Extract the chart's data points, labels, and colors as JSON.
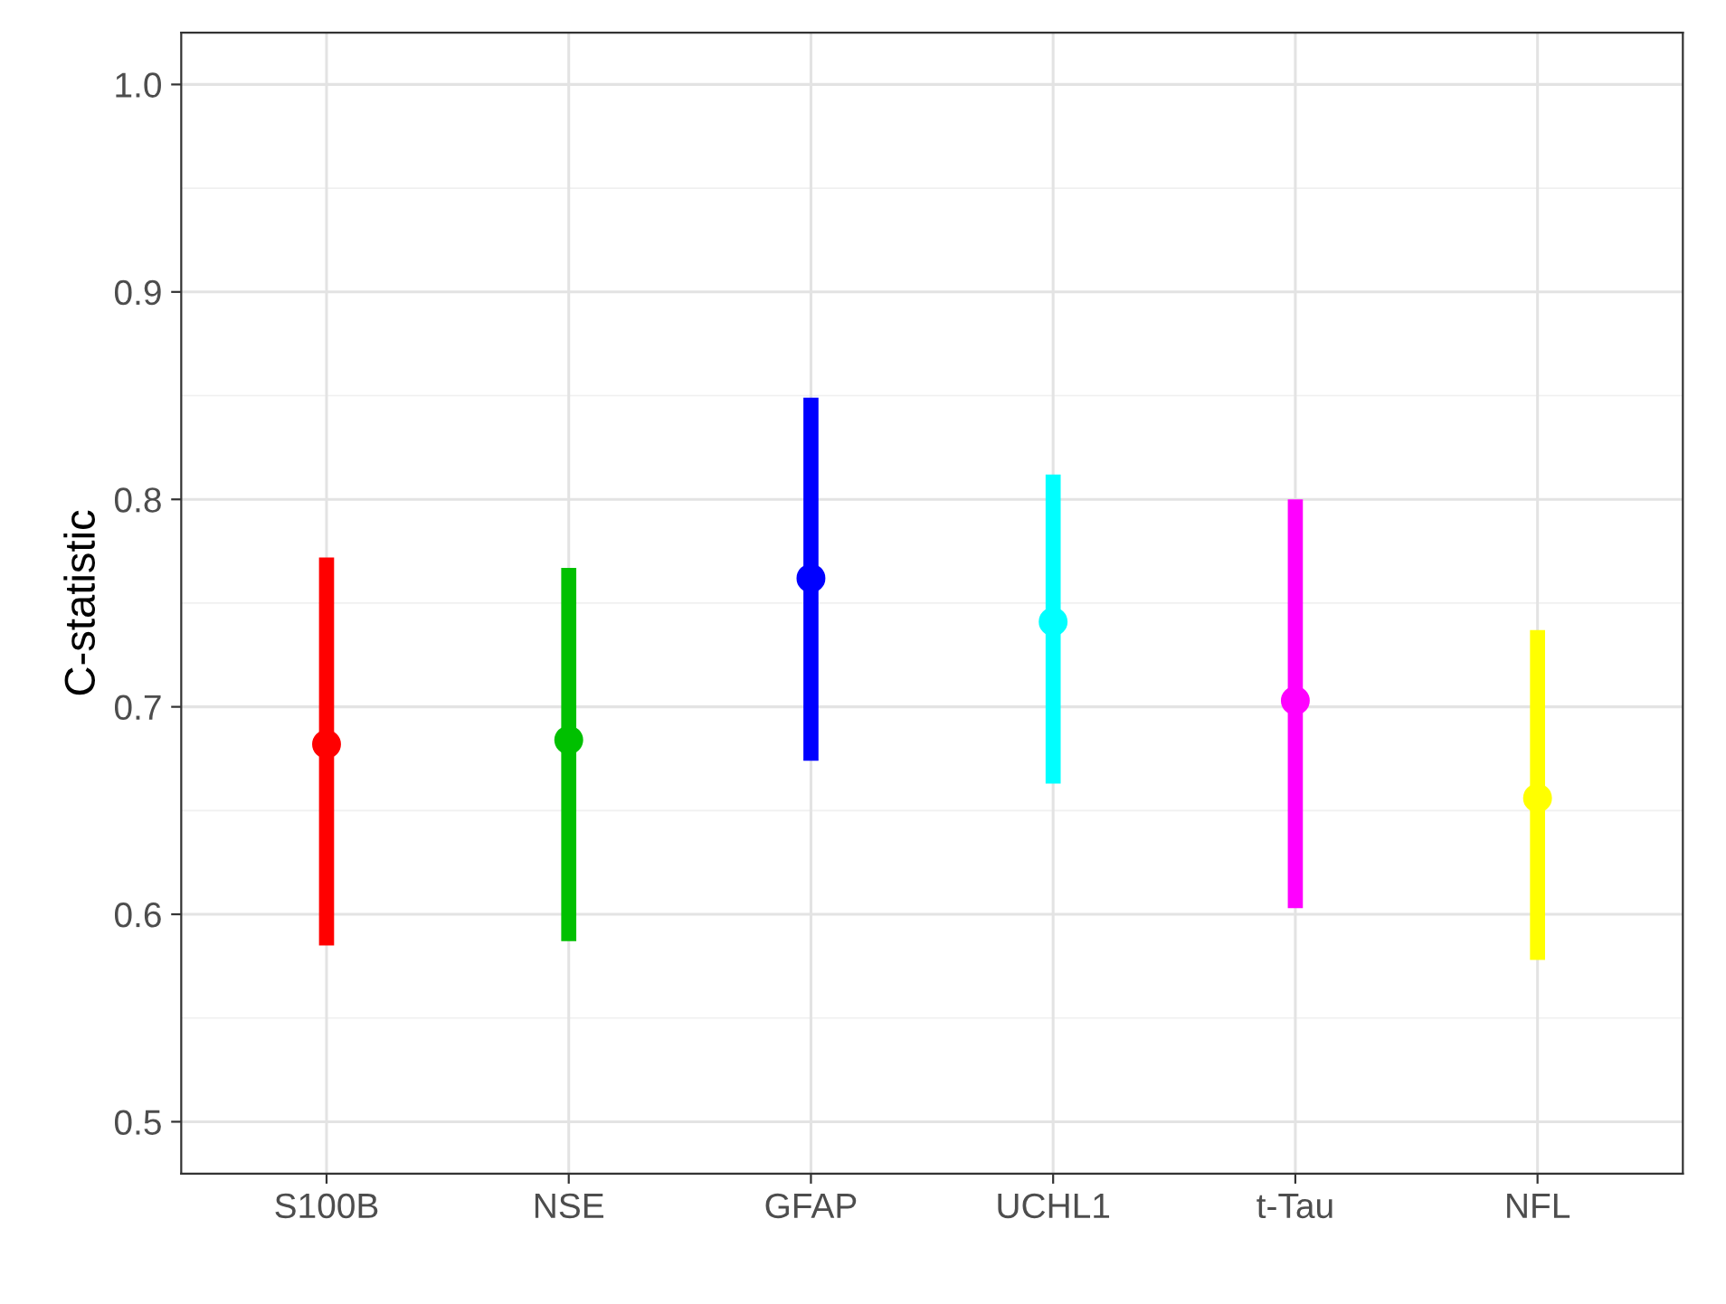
{
  "chart_data": {
    "type": "scatter",
    "ylabel": "C-statistic",
    "categories": [
      "S100B",
      "NSE",
      "GFAP",
      "UCHL1",
      "t-Tau",
      "NFL"
    ],
    "values": [
      0.682,
      0.684,
      0.762,
      0.741,
      0.703,
      0.656
    ],
    "errors": [
      [
        0.585,
        0.772
      ],
      [
        0.587,
        0.767
      ],
      [
        0.674,
        0.849
      ],
      [
        0.663,
        0.812
      ],
      [
        0.603,
        0.8
      ],
      [
        0.578,
        0.737
      ]
    ],
    "colors": [
      "#ff0000",
      "#00c000",
      "#0000ff",
      "#00ffff",
      "#ff00ff",
      "#ffff00"
    ],
    "ylim": [
      0.475,
      1.025
    ],
    "yticks": [
      0.5,
      0.6,
      0.7,
      0.8,
      0.9,
      {
        "value": 1.0,
        "label": "1.0"
      }
    ],
    "grid": true,
    "marker": "circle"
  }
}
